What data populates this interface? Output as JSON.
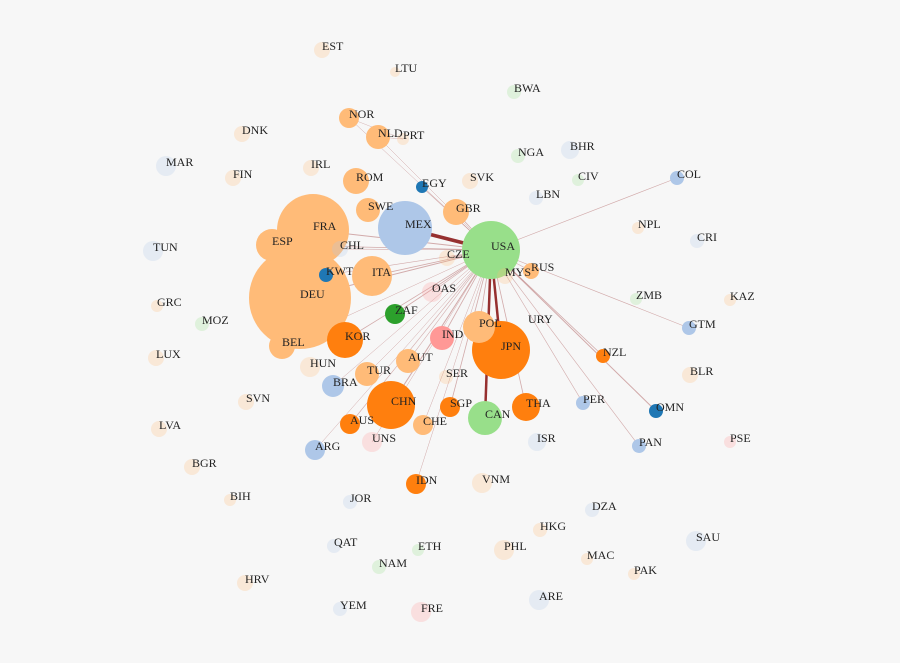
{
  "nodes": [
    {
      "label": "EST"
    },
    {
      "label": "LTU"
    },
    {
      "label": "BWA"
    },
    {
      "label": "NOR"
    },
    {
      "label": "NLD"
    },
    {
      "label": "PRT"
    },
    {
      "label": "DNK"
    },
    {
      "label": "NGA"
    },
    {
      "label": "BHR"
    },
    {
      "label": "MAR"
    },
    {
      "label": "IRL"
    },
    {
      "label": "FIN"
    },
    {
      "label": "ROM"
    },
    {
      "label": "EGY"
    },
    {
      "label": "SVK"
    },
    {
      "label": "CIV"
    },
    {
      "label": "COL"
    },
    {
      "label": "LBN"
    },
    {
      "label": "SWE"
    },
    {
      "label": "GBR"
    },
    {
      "label": "MEX"
    },
    {
      "label": "USA"
    },
    {
      "label": "FRA"
    },
    {
      "label": "ESP"
    },
    {
      "label": "CHL"
    },
    {
      "label": "NPL"
    },
    {
      "label": "CRI"
    },
    {
      "label": "TUN"
    },
    {
      "label": "CZE"
    },
    {
      "label": "KWT"
    },
    {
      "label": "ITA"
    },
    {
      "label": "MYS"
    },
    {
      "label": "RUS"
    },
    {
      "label": "DEU"
    },
    {
      "label": "OAS"
    },
    {
      "label": "GRC"
    },
    {
      "label": "ZMB"
    },
    {
      "label": "KAZ"
    },
    {
      "label": "MOZ"
    },
    {
      "label": "ZAF"
    },
    {
      "label": "GTM"
    },
    {
      "label": "KOR"
    },
    {
      "label": "IND"
    },
    {
      "label": "POL"
    },
    {
      "label": "URY"
    },
    {
      "label": "JPN"
    },
    {
      "label": "BEL"
    },
    {
      "label": "LUX"
    },
    {
      "label": "NZL"
    },
    {
      "label": "HUN"
    },
    {
      "label": "AUT"
    },
    {
      "label": "TUR"
    },
    {
      "label": "BRA"
    },
    {
      "label": "BLR"
    },
    {
      "label": "SER"
    },
    {
      "label": "SVN"
    },
    {
      "label": "CHN"
    },
    {
      "label": "SGP"
    },
    {
      "label": "PER"
    },
    {
      "label": "THA"
    },
    {
      "label": "OMN"
    },
    {
      "label": "AUS"
    },
    {
      "label": "CHE"
    },
    {
      "label": "CAN"
    },
    {
      "label": "LVA"
    },
    {
      "label": "UNS"
    },
    {
      "label": "ISR"
    },
    {
      "label": "PAN"
    },
    {
      "label": "PSE"
    },
    {
      "label": "ARG"
    },
    {
      "label": "BGR"
    },
    {
      "label": "IDN"
    },
    {
      "label": "VNM"
    },
    {
      "label": "BIH"
    },
    {
      "label": "JOR"
    },
    {
      "label": "DZA"
    },
    {
      "label": "HKG"
    },
    {
      "label": "SAU"
    },
    {
      "label": "QAT"
    },
    {
      "label": "ETH"
    },
    {
      "label": "PHL"
    },
    {
      "label": "MAC"
    },
    {
      "label": "NAM"
    },
    {
      "label": "PAK"
    },
    {
      "label": "HRV"
    },
    {
      "label": "ARE"
    },
    {
      "label": "YEM"
    },
    {
      "label": "FRE"
    }
  ]
}
